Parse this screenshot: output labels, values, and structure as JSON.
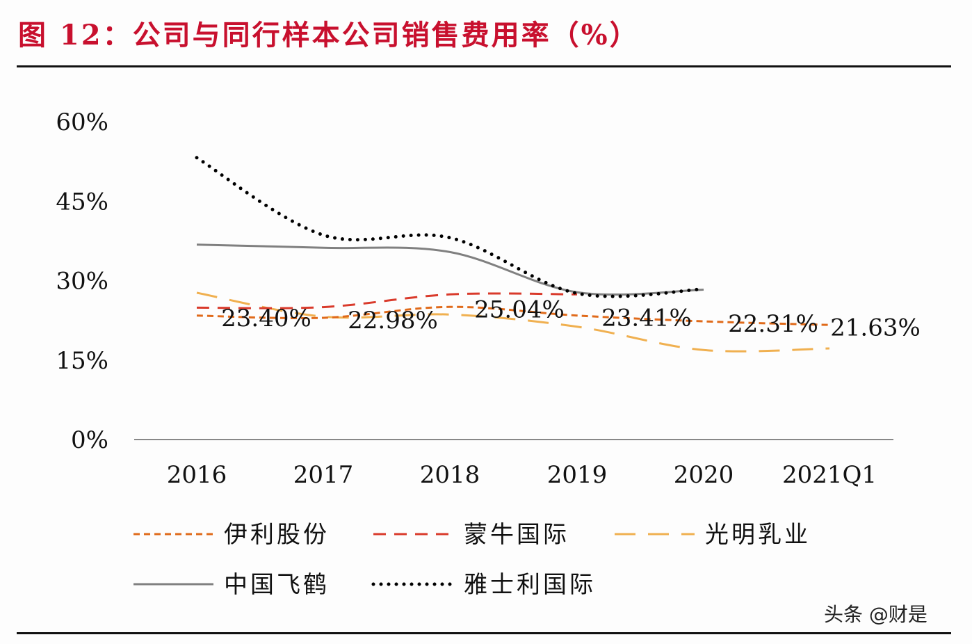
{
  "title": "图 12：公司与同行样本公司销售费用率（%）",
  "watermark": "头条 @财是",
  "chart_data": {
    "type": "line",
    "title": "公司与同行样本公司销售费用率（%）",
    "categories": [
      "2016",
      "2017",
      "2018",
      "2019",
      "2020",
      "2021Q1"
    ],
    "ylim": [
      0,
      60
    ],
    "yticks": [
      "0%",
      "15%",
      "30%",
      "45%",
      "60%"
    ],
    "ytick_values": [
      0,
      15,
      30,
      45,
      60
    ],
    "grid": false,
    "legend_position": "bottom",
    "series": [
      {
        "name": "伊利股份",
        "color": "#e06a1a",
        "style": "short-dash",
        "values": [
          23.4,
          22.98,
          25.04,
          23.41,
          22.31,
          21.63
        ],
        "labels": [
          "23.40%",
          "22.98%",
          "25.04%",
          "23.41%",
          "22.31%",
          "21.63%"
        ]
      },
      {
        "name": "蒙牛国际",
        "color": "#d93a2b",
        "style": "dash",
        "values": [
          24.9,
          25.0,
          27.4,
          27.4,
          null,
          null
        ]
      },
      {
        "name": "光明乳业",
        "color": "#f0b050",
        "style": "long-dash",
        "values": [
          27.7,
          23.2,
          23.6,
          21.3,
          16.9,
          17.2
        ]
      },
      {
        "name": "中国飞鹤",
        "color": "#808080",
        "style": "solid",
        "values": [
          36.8,
          36.2,
          35.4,
          27.8,
          28.3,
          null
        ]
      },
      {
        "name": "雅士利国际",
        "color": "#000000",
        "style": "dotted",
        "values": [
          53.2,
          38.6,
          38.1,
          27.6,
          28.4,
          null
        ]
      }
    ]
  }
}
